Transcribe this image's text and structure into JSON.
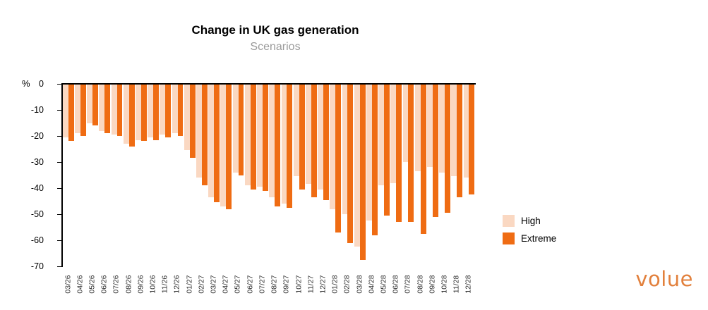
{
  "header": {
    "title": "Change in UK gas generation",
    "subtitle": "Scenarios"
  },
  "chart_data": {
    "type": "bar",
    "categories": [
      "03/26",
      "04/26",
      "05/26",
      "06/26",
      "07/26",
      "08/26",
      "09/26",
      "10/26",
      "11/26",
      "12/26",
      "01/27",
      "02/27",
      "03/27",
      "04/27",
      "05/27",
      "06/27",
      "07/27",
      "08/27",
      "09/27",
      "10/27",
      "11/27",
      "12/27",
      "01/28",
      "02/28",
      "03/28",
      "04/28",
      "05/28",
      "06/28",
      "07/28",
      "08/28",
      "09/28",
      "10/28",
      "11/28",
      "12/28"
    ],
    "series": [
      {
        "name": "High",
        "color": "#fad8c2",
        "values": [
          -20.5,
          -19,
          -15,
          -18,
          -19.5,
          -23,
          -21.5,
          -20.5,
          -19.5,
          -19,
          -25.5,
          -36,
          -43.5,
          -47,
          -34,
          -39,
          -39.5,
          -43.5,
          -46,
          -35.5,
          -38.5,
          -40.5,
          -48,
          -50,
          -62.5,
          -52.5,
          -39,
          -38,
          -30,
          -33.5,
          -32,
          -34,
          -35.5,
          -36
        ]
      },
      {
        "name": "Extreme",
        "color": "#ef6c13",
        "values": [
          -22,
          -20,
          -16,
          -19,
          -20,
          -24,
          -22,
          -21.5,
          -20.5,
          -20,
          -28.5,
          -39,
          -45.5,
          -48,
          -35,
          -40.5,
          -41,
          -47,
          -47.5,
          -40.5,
          -43.5,
          -44.5,
          -57,
          -61,
          -67.5,
          -58,
          -50.5,
          -53,
          -53,
          -57.5,
          -51,
          -49.5,
          -43.5,
          -42.5
        ]
      }
    ],
    "ylabel": "%",
    "yticks": [
      0,
      -10,
      -20,
      -30,
      -40,
      -50,
      -60,
      -70
    ],
    "ylim": [
      -70,
      0
    ],
    "grid": false,
    "legend_position": "right"
  },
  "logo": {
    "text": "volue",
    "color": "#e2803c"
  }
}
